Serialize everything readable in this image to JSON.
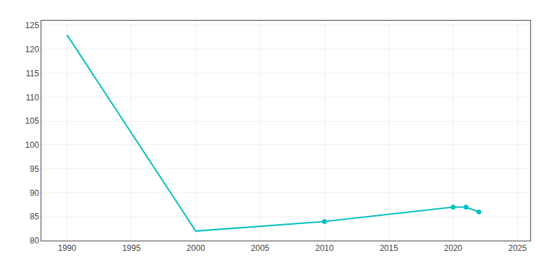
{
  "chart_data": {
    "type": "line",
    "x": [
      1990,
      2000,
      2010,
      2020,
      2021,
      2022
    ],
    "series": [
      {
        "color": "#00BFBF",
        "line_style": "solid",
        "values": [
          123,
          82,
          84,
          87,
          87,
          86
        ]
      },
      {
        "type": "scatter",
        "color": "#00BFBF",
        "marker": "circle",
        "values": [
          null,
          null,
          84,
          87,
          87,
          86
        ]
      }
    ],
    "xlim": [
      1988,
      2026
    ],
    "xticks": [
      1990,
      1995,
      2000,
      2005,
      2010,
      2015,
      2020,
      2025
    ],
    "ylim": [
      80,
      126
    ],
    "yticks": [
      80,
      85,
      90,
      95,
      100,
      105,
      110,
      115,
      120,
      125
    ],
    "grid": true
  }
}
